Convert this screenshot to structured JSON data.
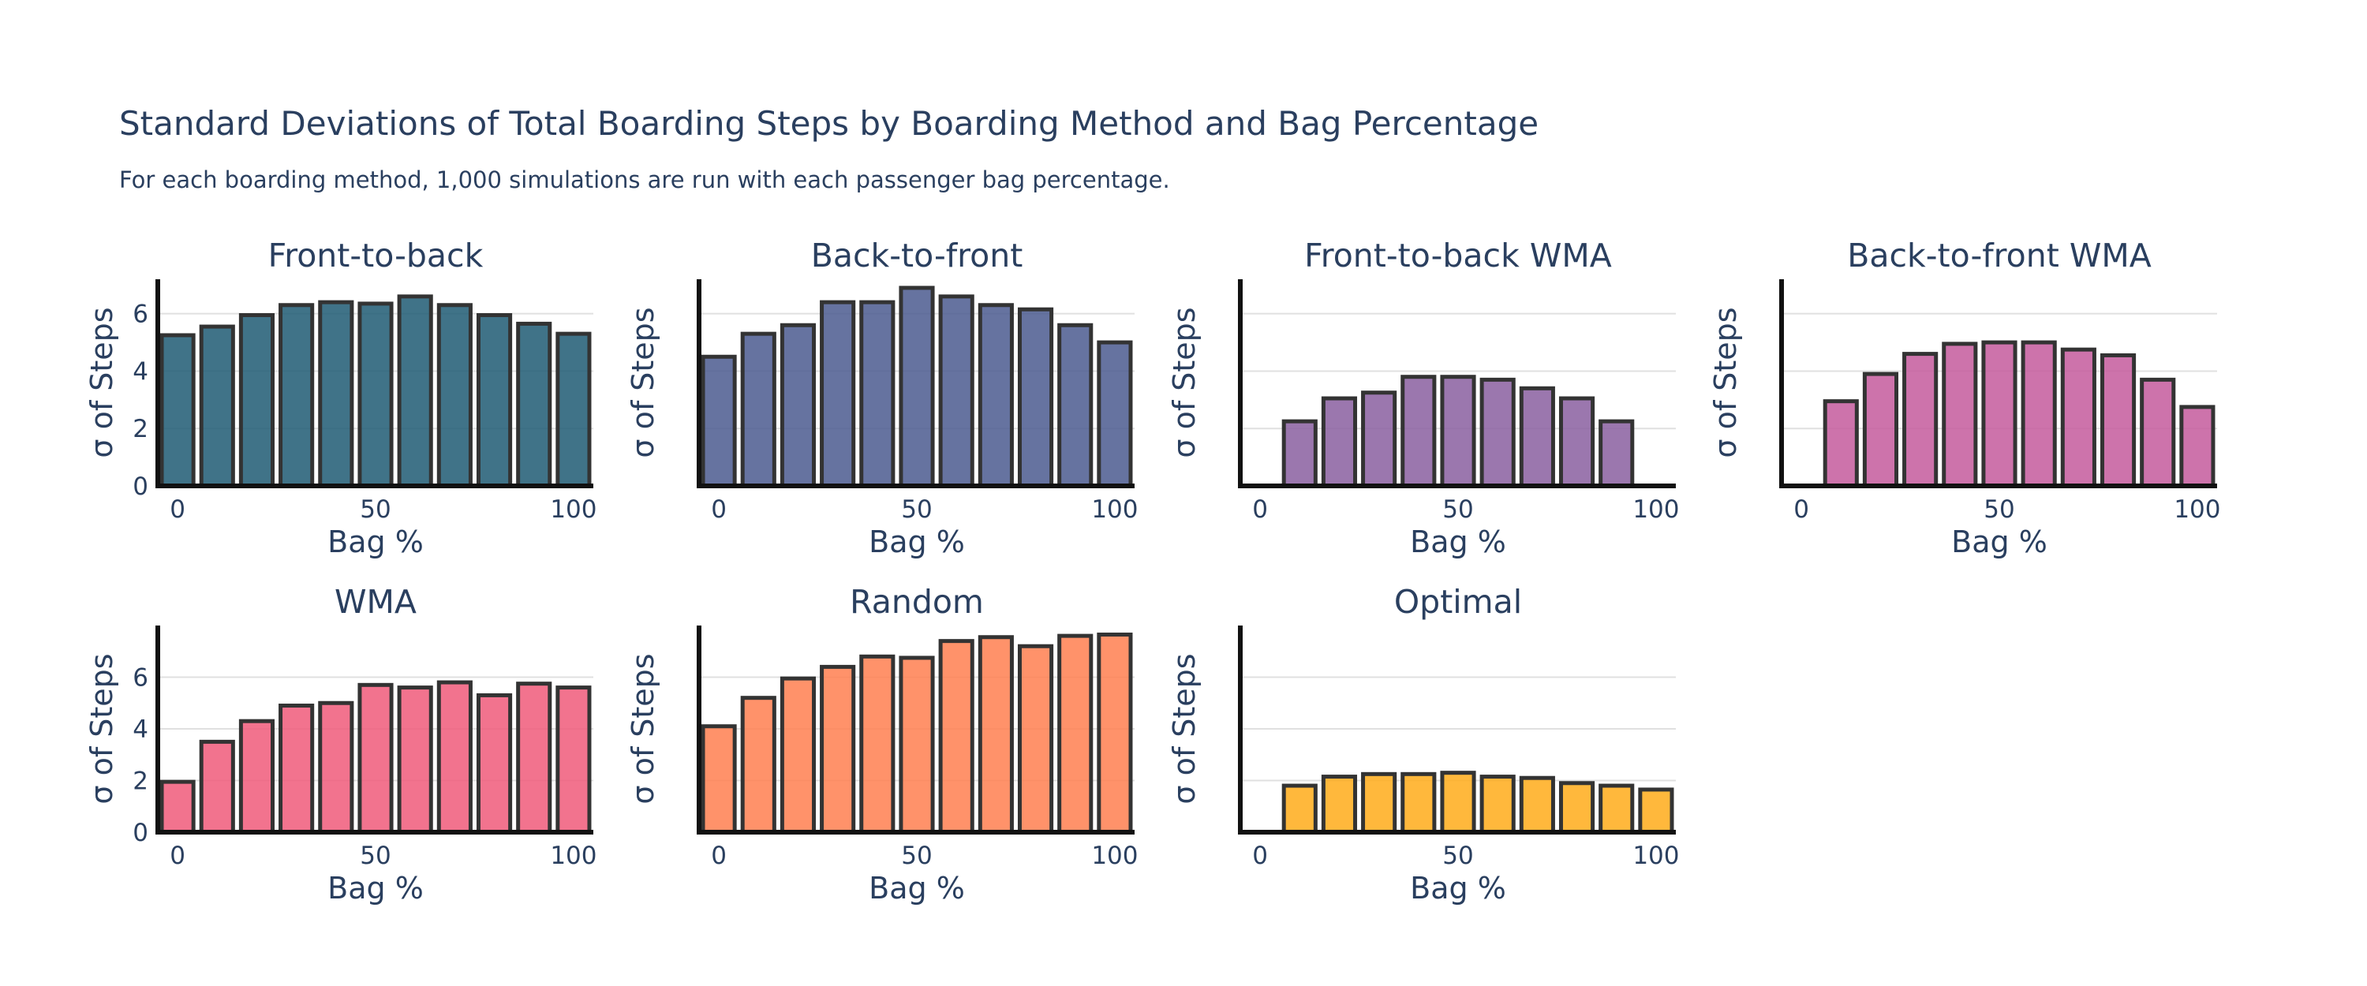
{
  "title": "Standard Deviations of Total Boarding Steps by Boarding Method and Bag Percentage",
  "subtitle": "For each boarding method, 1,000 simulations are run with each passenger bag percentage.",
  "chart_data": [
    {
      "type": "bar",
      "title": "Front-to-back",
      "xlabel": "Bag %",
      "ylabel": "σ of Steps",
      "color": "#1f5a73",
      "x": [
        0,
        10,
        20,
        30,
        40,
        50,
        60,
        70,
        80,
        90,
        100
      ],
      "values": [
        5.25,
        5.55,
        5.95,
        6.3,
        6.4,
        6.35,
        6.6,
        6.3,
        5.95,
        5.65,
        5.3
      ],
      "xticks": [
        0,
        50,
        100
      ],
      "yticks": [
        0,
        2,
        4,
        6
      ],
      "ylim": [
        0,
        7.2
      ]
    },
    {
      "type": "bar",
      "title": "Back-to-front",
      "xlabel": "Bag %",
      "ylabel": "σ of Steps",
      "color": "#4b5a8f",
      "x": [
        0,
        10,
        20,
        30,
        40,
        50,
        60,
        70,
        80,
        90,
        100
      ],
      "values": [
        4.5,
        5.3,
        5.6,
        6.4,
        6.4,
        6.9,
        6.6,
        6.3,
        6.15,
        5.6,
        5.0
      ],
      "xticks": [
        0,
        50,
        100
      ],
      "ylim": [
        0,
        7.2
      ]
    },
    {
      "type": "bar",
      "title": "Front-to-back WMA",
      "xlabel": "Bag %",
      "ylabel": "σ of Steps",
      "color": "#8a5fa0",
      "x": [
        0,
        10,
        20,
        30,
        40,
        50,
        60,
        70,
        80,
        90,
        100
      ],
      "values": [
        0,
        2.25,
        3.05,
        3.25,
        3.8,
        3.8,
        3.7,
        3.4,
        3.05,
        2.25,
        0
      ],
      "xticks": [
        0,
        50,
        100
      ],
      "ylim": [
        0,
        7.2
      ]
    },
    {
      "type": "bar",
      "title": "Back-to-front WMA",
      "xlabel": "Bag %",
      "ylabel": "σ of Steps",
      "color": "#c45a9c",
      "x": [
        0,
        10,
        20,
        30,
        40,
        50,
        60,
        70,
        80,
        90,
        100
      ],
      "values": [
        0,
        2.95,
        3.9,
        4.6,
        4.95,
        5.0,
        5.0,
        4.75,
        4.55,
        3.7,
        2.75
      ],
      "xticks": [
        0,
        50,
        100
      ],
      "ylim": [
        0,
        7.2
      ]
    },
    {
      "type": "bar",
      "title": "WMA",
      "xlabel": "Bag %",
      "ylabel": "σ of Steps",
      "color": "#f05a7a",
      "x": [
        0,
        10,
        20,
        30,
        40,
        50,
        60,
        70,
        80,
        90,
        100
      ],
      "values": [
        1.95,
        3.5,
        4.3,
        4.9,
        5.0,
        5.7,
        5.6,
        5.8,
        5.3,
        5.75,
        5.6
      ],
      "xticks": [
        0,
        50,
        100
      ],
      "yticks": [
        0,
        2,
        4,
        6
      ],
      "ylim": [
        0,
        8.0
      ]
    },
    {
      "type": "bar",
      "title": "Random",
      "xlabel": "Bag %",
      "ylabel": "σ of Steps",
      "color": "#ff7f50",
      "x": [
        0,
        10,
        20,
        30,
        40,
        50,
        60,
        70,
        80,
        90,
        100
      ],
      "values": [
        4.1,
        5.2,
        5.95,
        6.4,
        6.8,
        6.75,
        7.4,
        7.55,
        7.2,
        7.6,
        7.65
      ],
      "xticks": [
        0,
        50,
        100
      ],
      "ylim": [
        0,
        8.0
      ]
    },
    {
      "type": "bar",
      "title": "Optimal",
      "xlabel": "Bag %",
      "ylabel": "σ of Steps",
      "color": "#ffab1a",
      "x": [
        0,
        10,
        20,
        30,
        40,
        50,
        60,
        70,
        80,
        90,
        100
      ],
      "values": [
        0,
        1.8,
        2.15,
        2.25,
        2.25,
        2.3,
        2.15,
        2.1,
        1.9,
        1.8,
        1.65
      ],
      "xticks": [
        0,
        50,
        100
      ],
      "ylim": [
        0,
        8.0
      ]
    }
  ]
}
